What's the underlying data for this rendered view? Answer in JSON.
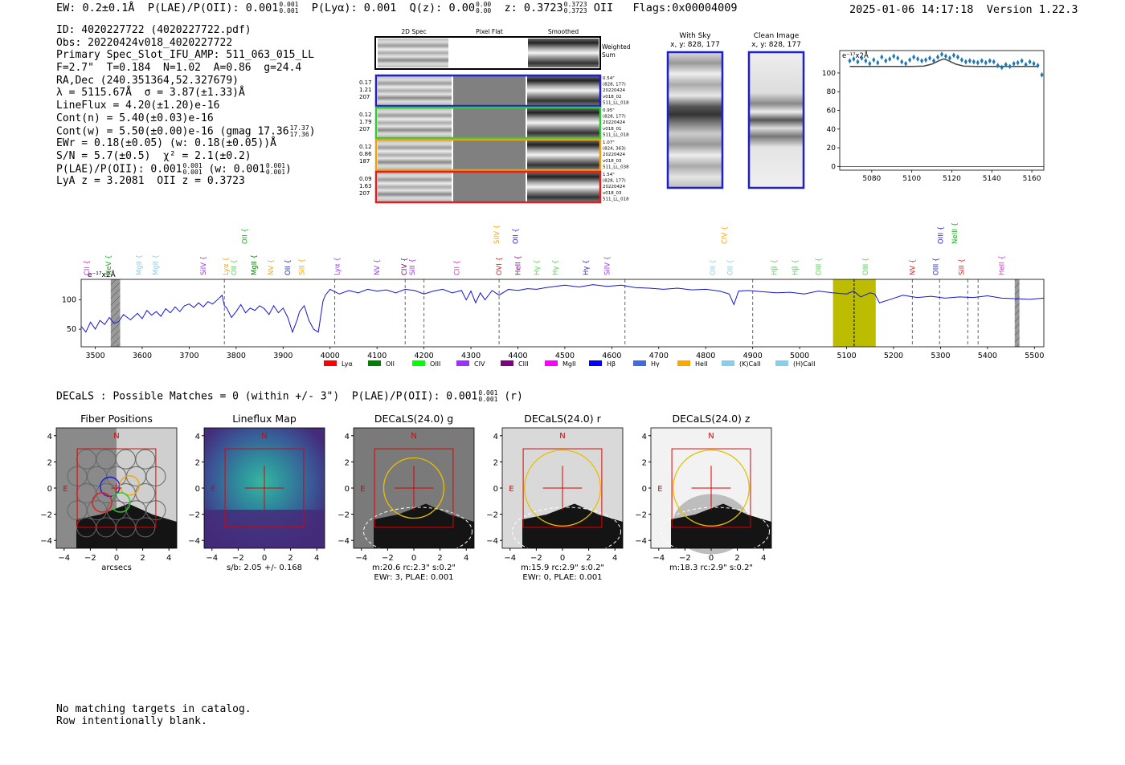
{
  "header": {
    "ew": "EW: 0.2±0.1Å",
    "plae_label": "P(LAE)/P(OII): 0.001",
    "plae_hi": "0.001",
    "plae_lo": "0.001",
    "plya": "P(Lyα): 0.001",
    "qz_label": "Q(z): 0.00",
    "qz_hi": "0.00",
    "qz_lo": "0.00",
    "z_label": "z: 0.3723",
    "z_hi": "0.3723",
    "z_lo": "0.3723",
    "z_line": "OII",
    "flags": "Flags:0x00004009",
    "timestamp": "2025-01-06 14:17:18",
    "version": "Version 1.22.3"
  },
  "info": {
    "id": "ID: 4020227722 (4020227722.pdf)",
    "obs": "Obs: 20220424v018_4020227722",
    "primary": "Primary Spec_Slot_IFU_AMP: 511_063_015_LL",
    "params": "F=2.7\"  T=0.184  N=1.02  A=0.86  g=24.4",
    "radec": "RA,Dec (240.351364,52.327679)",
    "lambda": "λ = 5115.67Å  σ = 3.87(±1.33)Å",
    "lineflux": "LineFlux = 4.20(±1.20)e-16",
    "contn": "Cont(n) = 5.40(±0.03)e-16",
    "contw": "Cont(w) = 5.50(±0.00)e-16 (gmag 17.36",
    "contw_hi": "17.37",
    "contw_lo": "17.36",
    "ewr": "EWr = 0.18(±0.05) (w: 0.18(±0.05))Å",
    "sn": "S/N = 5.7(±0.5)  χ² = 2.1(±0.2)",
    "plae": "P(LAE)/P(OII): 0.001",
    "plae_hi": "0.001",
    "plae_lo": "0.001",
    "plae_w": "(w: 0.001",
    "plae_w_hi": "0.001",
    "plae_w_lo": "0.001",
    "lyaz": "LyA z = 3.2081  OII z = 0.3723"
  },
  "cutouts": {
    "col_2d": "2D Spec",
    "col_flat": "Pixel Flat",
    "col_smooth": "Smoothed",
    "weighted": "Weighted",
    "sum": "Sum",
    "rows": [
      {
        "left": [
          "0.17",
          "1.21",
          "207"
        ],
        "right": [
          "0.54\"",
          "(828, 177)",
          "20220424",
          "v018_02",
          "511_LL_018"
        ],
        "color": "#1f1fd0"
      },
      {
        "left": [
          "0.12",
          "1.79",
          "207"
        ],
        "right": [
          "0.95\"",
          "(828, 177)",
          "20220424",
          "v018_01",
          "511_LL_018"
        ],
        "color": "#2ecc2e"
      },
      {
        "left": [
          "0.12",
          "0.86",
          "187"
        ],
        "right": [
          "1.07\"",
          "(824, 363)",
          "20220424",
          "v018_03",
          "511_LL_038"
        ],
        "color": "#f39c12"
      },
      {
        "left": [
          "0.09",
          "1.63",
          "207"
        ],
        "right": [
          "1.54\"",
          "(828, 177)",
          "20220424",
          "v018_03",
          "511_LL_018"
        ],
        "color": "#e02020"
      }
    ]
  },
  "sky": {
    "with_sky_title": "With Sky",
    "with_sky_xy": "x, y: 828, 177",
    "clean_title": "Clean Image",
    "clean_xy": "x, y: 828, 177"
  },
  "chart_data": [
    {
      "type": "scatter",
      "title": "",
      "xlabel": "",
      "ylabel": "",
      "unit_label": "e⁻¹⁷x2Å",
      "xlim": [
        5064,
        5166
      ],
      "ylim": [
        -4,
        124
      ],
      "xticks": [
        5080,
        5100,
        5120,
        5140,
        5160
      ],
      "yticks": [
        0,
        20,
        40,
        60,
        80,
        100
      ],
      "x": [
        5069,
        5071,
        5073,
        5075,
        5077,
        5079,
        5081,
        5083,
        5085,
        5087,
        5089,
        5091,
        5093,
        5095,
        5097,
        5099,
        5101,
        5103,
        5105,
        5107,
        5109,
        5111,
        5113,
        5115,
        5117,
        5119,
        5121,
        5123,
        5125,
        5127,
        5129,
        5131,
        5133,
        5135,
        5137,
        5139,
        5141,
        5143,
        5145,
        5147,
        5149,
        5151,
        5153,
        5155,
        5157,
        5159,
        5161,
        5163,
        5165
      ],
      "y": [
        113,
        115,
        112,
        116,
        113,
        110,
        114,
        111,
        117,
        113,
        115,
        118,
        116,
        112,
        110,
        114,
        117,
        115,
        113,
        114,
        116,
        113,
        117,
        120,
        118,
        116,
        119,
        117,
        114,
        112,
        113,
        112,
        111,
        113,
        111,
        113,
        112,
        108,
        106,
        109,
        107,
        110,
        111,
        113,
        109,
        112,
        110,
        108,
        98
      ],
      "fit_x": [
        5069,
        5100,
        5106,
        5110,
        5114,
        5116,
        5118,
        5122,
        5126,
        5132,
        5163
      ],
      "fit_y": [
        107,
        107,
        107.4,
        109.5,
        113.5,
        115,
        113.5,
        109.5,
        107.4,
        107,
        107
      ]
    },
    {
      "type": "line",
      "title": "",
      "xlabel": "",
      "ylabel": "",
      "unit_label": "e⁻¹⁷x2Å",
      "xlim": [
        3470,
        5520
      ],
      "ylim": [
        20,
        135
      ],
      "xticks": [
        3500,
        3600,
        3700,
        3800,
        3900,
        4000,
        4100,
        4200,
        4300,
        4400,
        4500,
        4600,
        4700,
        4800,
        4900,
        5000,
        5100,
        5200,
        5300,
        5400,
        5500
      ],
      "yticks": [
        50,
        100
      ],
      "x": [
        3470,
        3480,
        3490,
        3500,
        3510,
        3520,
        3530,
        3540,
        3550,
        3560,
        3575,
        3590,
        3600,
        3610,
        3620,
        3630,
        3640,
        3650,
        3660,
        3670,
        3680,
        3690,
        3700,
        3710,
        3720,
        3730,
        3740,
        3750,
        3760,
        3770,
        3775,
        3780,
        3790,
        3800,
        3810,
        3820,
        3830,
        3840,
        3850,
        3860,
        3870,
        3880,
        3890,
        3900,
        3910,
        3920,
        3930,
        3935,
        3945,
        3955,
        3965,
        3975,
        3985,
        3990,
        4000,
        4020,
        4040,
        4060,
        4080,
        4100,
        4120,
        4140,
        4160,
        4180,
        4200,
        4220,
        4240,
        4260,
        4280,
        4290,
        4300,
        4310,
        4320,
        4330,
        4345,
        4360,
        4380,
        4400,
        4420,
        4440,
        4460,
        4480,
        4500,
        4530,
        4560,
        4590,
        4620,
        4650,
        4680,
        4710,
        4740,
        4770,
        4800,
        4830,
        4850,
        4860,
        4870,
        4890,
        4920,
        4950,
        4980,
        5010,
        5040,
        5070,
        5100,
        5115,
        5130,
        5150,
        5160,
        5170,
        5190,
        5220,
        5250,
        5280,
        5310,
        5340,
        5370,
        5400,
        5430,
        5460,
        5490,
        5520
      ],
      "y": [
        55,
        45,
        62,
        50,
        65,
        58,
        70,
        60,
        63,
        75,
        66,
        77,
        68,
        82,
        74,
        80,
        72,
        85,
        78,
        88,
        80,
        90,
        93,
        87,
        95,
        88,
        97,
        93,
        100,
        108,
        90,
        86,
        70,
        80,
        92,
        78,
        86,
        82,
        90,
        85,
        75,
        90,
        78,
        86,
        70,
        45,
        66,
        80,
        90,
        65,
        50,
        45,
        98,
        108,
        118,
        110,
        116,
        112,
        118,
        115,
        117,
        112,
        118,
        116,
        110,
        115,
        118,
        112,
        116,
        100,
        115,
        95,
        112,
        100,
        116,
        108,
        118,
        116,
        119,
        118,
        121,
        123,
        125,
        122,
        126,
        123,
        125,
        121,
        120,
        118,
        120,
        117,
        118,
        115,
        110,
        92,
        115,
        116,
        114,
        112,
        113,
        110,
        115,
        112,
        110,
        115,
        105,
        112,
        110,
        95,
        100,
        108,
        104,
        106,
        103,
        105,
        104,
        107,
        103,
        102,
        101,
        103
      ]
    }
  ],
  "spectrum": {
    "lines_top": [
      {
        "label": "CII",
        "color": "#e020e0"
      },
      {
        "label": "NeV",
        "color": "#18b018"
      },
      {
        "label": "MgII",
        "color": "#87ceeb"
      },
      {
        "label": "MgII",
        "color": "#87ceeb"
      },
      {
        "label": "SiIV",
        "color": "#9b30ff"
      },
      {
        "label": "Lyα",
        "color": "#ffa500"
      },
      {
        "label": "OII",
        "color": "#4cd94c"
      },
      {
        "label": "OII",
        "color": "#18b018"
      },
      {
        "label": "MgII",
        "color": "#008000"
      },
      {
        "label": "NV",
        "color": "#ffa500"
      },
      {
        "label": "OII",
        "color": "#1f1fd0"
      },
      {
        "label": "SiII",
        "color": "#ffa500"
      },
      {
        "label": "Lyα",
        "color": "#9b30ff"
      },
      {
        "label": "NV",
        "color": "#9b30ff"
      },
      {
        "label": "CIV",
        "color": "#800080"
      },
      {
        "label": "SiII",
        "color": "#9b30ff"
      },
      {
        "label": "CII",
        "color": "#e020e0"
      },
      {
        "label": "SiIV",
        "color": "#ffa500"
      },
      {
        "label": "OVI",
        "color": "#e02020"
      },
      {
        "label": "OII",
        "color": "#1f1fd0"
      },
      {
        "label": "HeII",
        "color": "#800080"
      },
      {
        "label": "Hγ",
        "color": "#4cd94c"
      },
      {
        "label": "Hγ",
        "color": "#4cd94c"
      },
      {
        "label": "Hγ",
        "color": "#1f1fd0"
      },
      {
        "label": "SiIV",
        "color": "#9b30ff"
      },
      {
        "label": "OII",
        "color": "#87ceeb"
      },
      {
        "label": "CIV",
        "color": "#ffa500"
      },
      {
        "label": "OII",
        "color": "#87ceeb"
      },
      {
        "label": "Hβ",
        "color": "#4cd94c"
      },
      {
        "label": "Hβ",
        "color": "#4cd94c"
      },
      {
        "label": "OIII",
        "color": "#4cd94c"
      },
      {
        "label": "OIII",
        "color": "#4cd94c"
      },
      {
        "label": "NV",
        "color": "#e02020"
      },
      {
        "label": "OIII",
        "color": "#1f1fd0"
      },
      {
        "label": "OIII",
        "color": "#1f1fd0"
      },
      {
        "label": "NeIII",
        "color": "#18b018"
      },
      {
        "label": "SiII",
        "color": "#e02020"
      },
      {
        "label": "HeII",
        "color": "#e020e0"
      }
    ],
    "legend": [
      {
        "label": "Lyα",
        "color": "#ff0000"
      },
      {
        "label": "OII",
        "color": "#008000"
      },
      {
        "label": "OIII",
        "color": "#00ff00"
      },
      {
        "label": "CIV",
        "color": "#9b30ff"
      },
      {
        "label": "CIII",
        "color": "#800080"
      },
      {
        "label": "MgII",
        "color": "#ff00ff"
      },
      {
        "label": "Hβ",
        "color": "#0000ff"
      },
      {
        "label": "Hγ",
        "color": "#4169e1"
      },
      {
        "label": "HeII",
        "color": "#ffa500"
      },
      {
        "label": "(K)CaII",
        "color": "#87ceeb"
      },
      {
        "label": "(H)CaII",
        "color": "#87ceeb"
      }
    ]
  },
  "decals": {
    "header": "DECaLS : Possible Matches = 0 (within +/- 3\")  P(LAE)/P(OII): 0.001",
    "header_hi": "0.001",
    "header_lo": "0.001",
    "header_band": "(r)",
    "panels": [
      {
        "title": "Fiber Positions",
        "caption1": "arcsecs",
        "caption2": ""
      },
      {
        "title": "Lineflux Map",
        "caption1": "s/b: 2.05 +/- 0.168",
        "caption2": ""
      },
      {
        "title": "DECaLS(24.0) g",
        "caption1": "m:20.6 rc:2.3\"  s:0.2\"",
        "caption2": "EWr: 3, PLAE: 0.001"
      },
      {
        "title": "DECaLS(24.0) r",
        "caption1": "m:15.9 rc:2.9\"  s:0.2\"",
        "caption2": "EWr: 0, PLAE: 0.001"
      },
      {
        "title": "DECaLS(24.0) z",
        "caption1": "m:18.3 rc:2.9\"  s:0.2\"",
        "caption2": ""
      }
    ],
    "ticks": [
      "4",
      "2",
      "0",
      "−2",
      "−4"
    ],
    "xticks": [
      "−4",
      "−2",
      "0",
      "2",
      "4"
    ],
    "n_label": "N",
    "e_label": "E"
  },
  "footer": {
    "line1": "No matching targets in catalog.",
    "line2": "Row intentionally blank."
  }
}
